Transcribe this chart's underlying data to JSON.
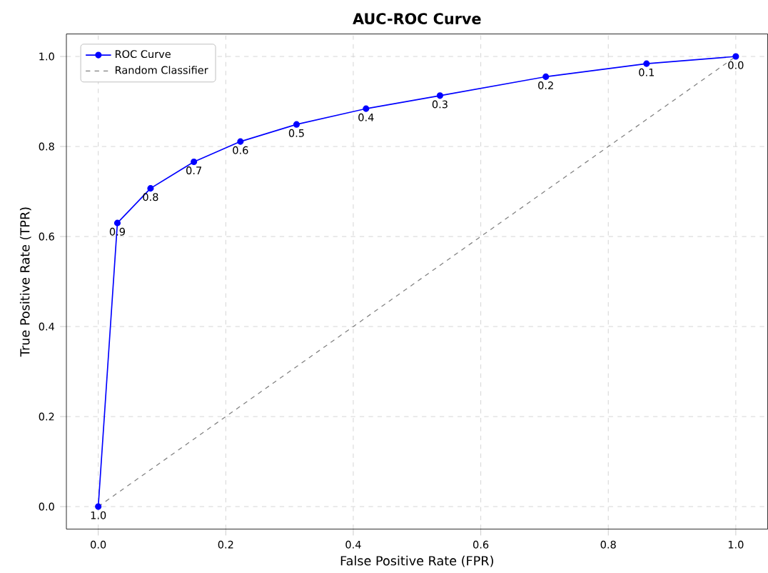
{
  "chart_data": {
    "type": "line",
    "title": "AUC-ROC Curve",
    "xlabel": "False Positive Rate (FPR)",
    "ylabel": "True Positive Rate (TPR)",
    "series": [
      {
        "name": "ROC Curve",
        "color": "#0000ff",
        "marker": "circle",
        "line_style": "solid",
        "x": [
          0,
          0.03,
          0.082,
          0.15,
          0.223,
          0.311,
          0.42,
          0.536,
          0.702,
          0.86,
          1.0
        ],
        "values": [
          0,
          0.63,
          0.707,
          0.766,
          0.811,
          0.849,
          0.884,
          0.913,
          0.955,
          0.984,
          1.0
        ]
      },
      {
        "name": "Random Classifier",
        "color": "#808080",
        "marker": "none",
        "line_style": "dashed",
        "x": [
          0,
          1
        ],
        "values": [
          0,
          1
        ]
      }
    ],
    "annotations": [
      {
        "text": "1.0",
        "x": 0,
        "y": 0
      },
      {
        "text": "0.9",
        "x": 0.03,
        "y": 0.63
      },
      {
        "text": "0.8",
        "x": 0.082,
        "y": 0.707
      },
      {
        "text": "0.7",
        "x": 0.15,
        "y": 0.766
      },
      {
        "text": "0.6",
        "x": 0.223,
        "y": 0.811
      },
      {
        "text": "0.5",
        "x": 0.311,
        "y": 0.849
      },
      {
        "text": "0.4",
        "x": 0.42,
        "y": 0.884
      },
      {
        "text": "0.3",
        "x": 0.536,
        "y": 0.913
      },
      {
        "text": "0.2",
        "x": 0.702,
        "y": 0.955
      },
      {
        "text": "0.1",
        "x": 0.86,
        "y": 0.984
      },
      {
        "text": "0.0",
        "x": 1.0,
        "y": 1.0
      }
    ],
    "xlim": [
      -0.05,
      1.05
    ],
    "ylim": [
      -0.05,
      1.05
    ],
    "xticks": [
      {
        "value": 0,
        "label": "0.0"
      },
      0.2,
      0.4,
      0.6,
      0.8,
      {
        "value": 1,
        "label": "1.0"
      }
    ],
    "yticks": [
      {
        "value": 0,
        "label": "0.0"
      },
      0.2,
      0.4,
      0.6,
      0.8,
      {
        "value": 1,
        "label": "1.0"
      }
    ],
    "grid": true,
    "legend": "top left"
  }
}
